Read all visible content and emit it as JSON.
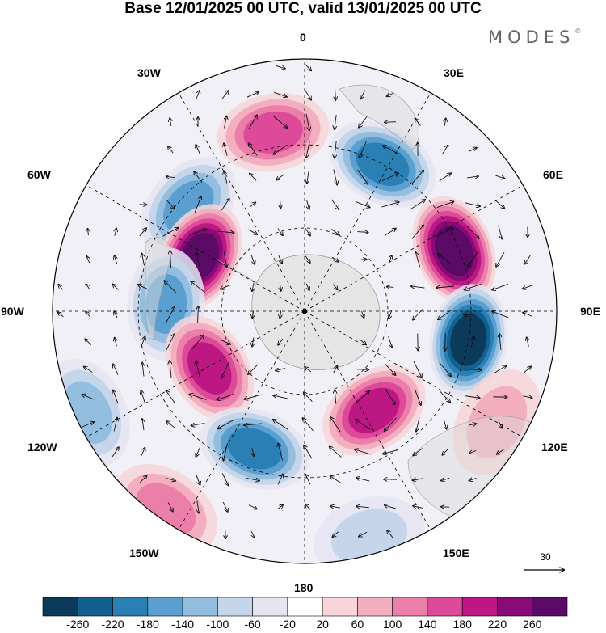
{
  "title": "Base 12/01/2025 00 UTC, valid 13/01/2025 00 UTC",
  "brand": "MODES",
  "brand_mark": "©",
  "longitude_labels": {
    "lon_0": "0",
    "lon_30E": "30E",
    "lon_60E": "60E",
    "lon_90E": "90E",
    "lon_120E": "120E",
    "lon_150E": "150E",
    "lon_180": "180",
    "lon_150W": "150W",
    "lon_120W": "120W",
    "lon_90W": "90W",
    "lon_60W": "60W",
    "lon_30W": "30W"
  },
  "reference_vector": {
    "label": "30"
  },
  "colorbar": {
    "ticks": [
      "-260",
      "-220",
      "-180",
      "-140",
      "-100",
      "-60",
      "-20",
      "20",
      "60",
      "100",
      "140",
      "180",
      "220",
      "260"
    ],
    "colors": [
      "#0c3a5a",
      "#11608f",
      "#2a7fb5",
      "#5a9fcf",
      "#93bee0",
      "#c5d6ea",
      "#e4e5f1",
      "#ffffff",
      "#f7d5d8",
      "#f3aec0",
      "#ec7eaa",
      "#dd4a99",
      "#bd1784",
      "#8a0a78",
      "#5b0a66"
    ]
  },
  "anomaly_centers": [
    {
      "label": "positive",
      "lon": -10,
      "colat": 0.72,
      "value": 160
    },
    {
      "label": "negative",
      "lon": 28,
      "colat": 0.66,
      "value": -200
    },
    {
      "label": "negative",
      "lon": -48,
      "colat": 0.62,
      "value": -160
    },
    {
      "label": "positive",
      "lon": -63,
      "colat": 0.47,
      "value": 260
    },
    {
      "label": "positive",
      "lon": 68,
      "colat": 0.64,
      "value": 260
    },
    {
      "label": "negative",
      "lon": 100,
      "colat": 0.66,
      "value": -260
    },
    {
      "label": "negative",
      "lon": -87,
      "colat": 0.55,
      "value": -140
    },
    {
      "label": "positive",
      "lon": -121,
      "colat": 0.44,
      "value": 200
    },
    {
      "label": "negative",
      "lon": -160,
      "colat": 0.58,
      "value": -200
    },
    {
      "label": "positive",
      "lon": 145,
      "colat": 0.48,
      "value": 200
    },
    {
      "label": "positive",
      "lon": -145,
      "colat": 0.96,
      "value": 100
    },
    {
      "label": "negative",
      "lon": -115,
      "colat": 0.95,
      "value": -100
    },
    {
      "label": "negative",
      "lon": 164,
      "colat": 0.93,
      "value": -60
    },
    {
      "label": "positive",
      "lon": 120,
      "colat": 0.88,
      "value": 60
    }
  ]
}
